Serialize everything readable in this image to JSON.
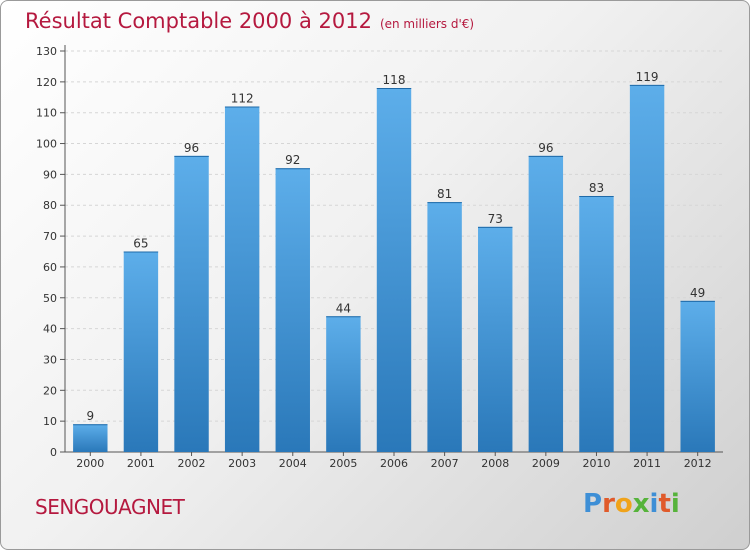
{
  "header": {
    "title": "Résultat Comptable 2000 à 2012",
    "subtitle": "(en milliers d'€)"
  },
  "footer": {
    "commune": "SENGOUAGNET",
    "logo_text": "Proxiti"
  },
  "colors": {
    "title": "#b5193f",
    "bar_top": "#5daeea",
    "bar_bottom": "#2a78b9",
    "logo_letters": [
      "#3e8fd6",
      "#e05a2a",
      "#f0a31a",
      "#56b33b",
      "#3e8fd6",
      "#e05a2a",
      "#56b33b"
    ]
  },
  "chart_data": {
    "type": "bar",
    "categories": [
      "2000",
      "2001",
      "2002",
      "2003",
      "2004",
      "2005",
      "2006",
      "2007",
      "2008",
      "2009",
      "2010",
      "2011",
      "2012"
    ],
    "values": [
      9,
      65,
      96,
      112,
      92,
      44,
      118,
      81,
      73,
      96,
      83,
      119,
      49
    ],
    "title": "Résultat Comptable 2000 à 2012",
    "subtitle": "(en milliers d'€)",
    "xlabel": "",
    "ylabel": "",
    "ylim": [
      0,
      130
    ],
    "yticks": [
      0,
      10,
      20,
      30,
      40,
      50,
      60,
      70,
      80,
      90,
      100,
      110,
      120,
      130
    ],
    "grid": true,
    "data_labels": true
  }
}
